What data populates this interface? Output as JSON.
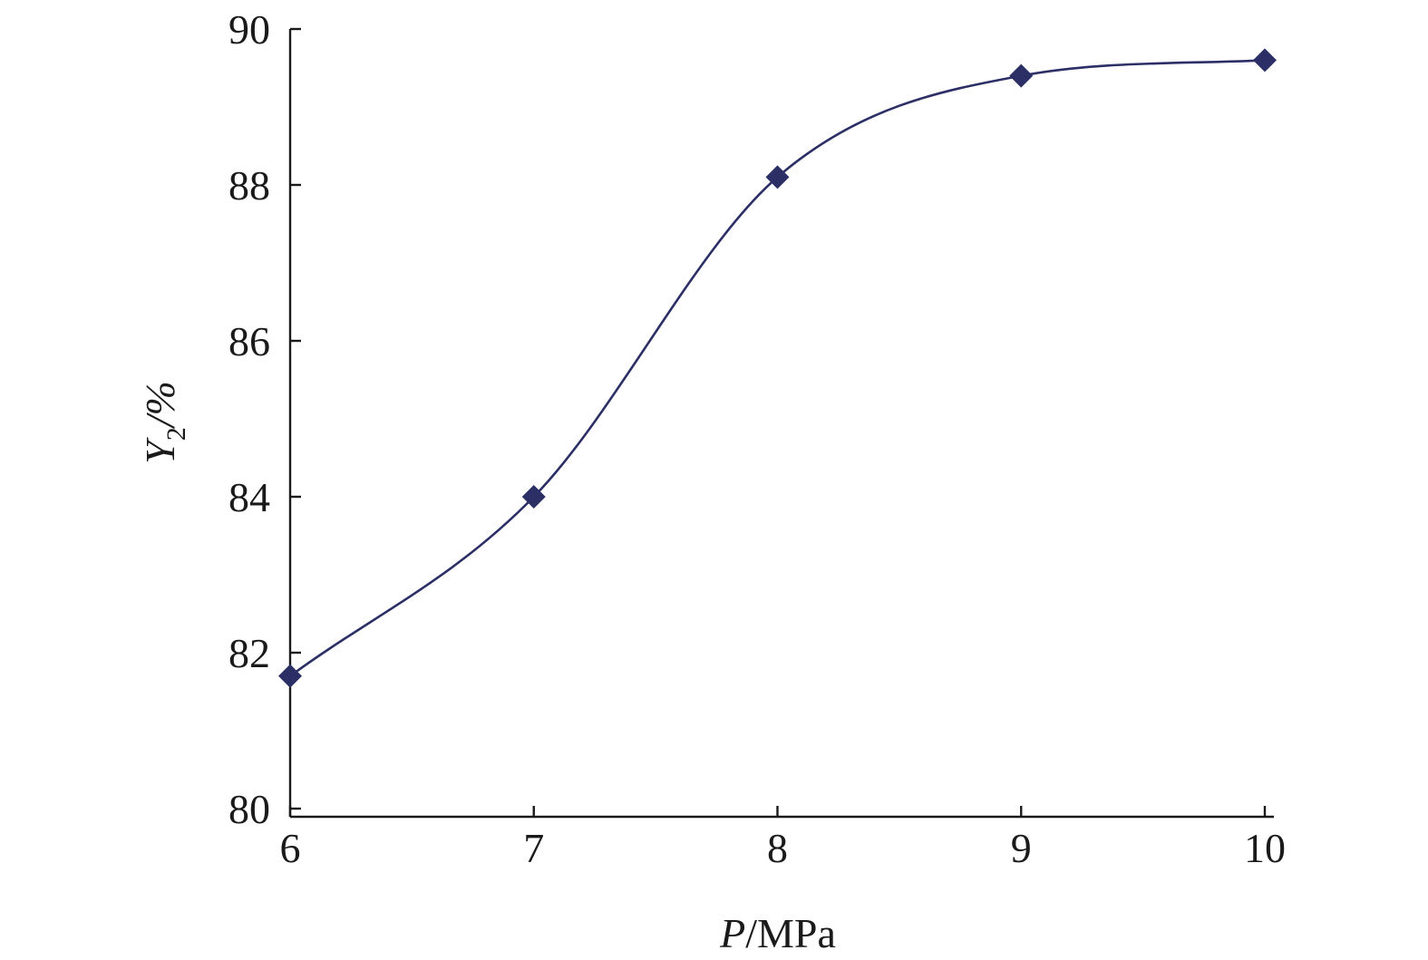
{
  "chart_data": {
    "type": "line",
    "title": "",
    "x": [
      6,
      7,
      8,
      9,
      10
    ],
    "series": [
      {
        "values": [
          81.7,
          84.0,
          88.1,
          89.4,
          89.6
        ],
        "color": "#2b2f66",
        "marker": "diamond"
      }
    ],
    "xlabel": {
      "var": "P",
      "unit": "/MPa"
    },
    "ylabel": {
      "var": "Y",
      "sub": "2",
      "unit": "/%"
    },
    "xlim": [
      6,
      10
    ],
    "ylim": [
      80,
      90
    ],
    "xticks": [
      6,
      7,
      8,
      9,
      10
    ],
    "yticks": [
      80,
      82,
      84,
      86,
      88,
      90
    ],
    "grid": false,
    "legend": "none",
    "smooth": true
  }
}
